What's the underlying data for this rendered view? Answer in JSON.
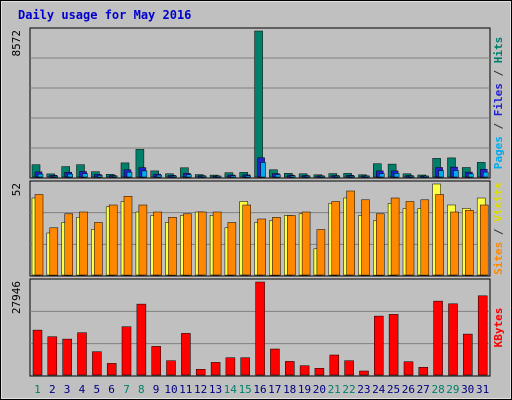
{
  "chart_data": {
    "type": "bar",
    "title": "Daily usage for May 2016",
    "x": [
      1,
      2,
      3,
      4,
      5,
      6,
      7,
      8,
      9,
      10,
      11,
      12,
      13,
      14,
      15,
      16,
      17,
      18,
      19,
      20,
      21,
      22,
      23,
      24,
      25,
      26,
      27,
      28,
      29,
      30,
      31
    ],
    "weekend_days": [
      1,
      7,
      8,
      14,
      15,
      21,
      22,
      28,
      29
    ],
    "panels": [
      {
        "id": "top",
        "ymax": 8572,
        "ymax_label": "8572",
        "side_labels": [
          {
            "text": "Pages",
            "color": "#00aaee"
          },
          {
            "text": " / ",
            "color": "#333333"
          },
          {
            "text": "Files",
            "color": "#2222cc"
          },
          {
            "text": " / ",
            "color": "#333333"
          },
          {
            "text": "Hits",
            "color": "#00806a"
          }
        ],
        "series": [
          {
            "name": "Hits",
            "color": "#00806a",
            "values": [
              720,
              180,
              610,
              720,
              310,
              160,
              830,
              1620,
              360,
              190,
              540,
              140,
              110,
              250,
              270,
              8572,
              420,
              220,
              190,
              130,
              200,
              210,
              130,
              780,
              760,
              190,
              120,
              1090,
              1120,
              560,
              860
            ]
          },
          {
            "name": "Files",
            "color": "#2222cc",
            "values": [
              300,
              100,
              280,
              320,
              150,
              90,
              420,
              550,
              170,
              100,
              210,
              80,
              60,
              120,
              130,
              1130,
              200,
              110,
              90,
              70,
              90,
              100,
              70,
              360,
              360,
              90,
              60,
              560,
              580,
              290,
              450
            ]
          },
          {
            "name": "Pages",
            "color": "#00aaee",
            "values": [
              170,
              60,
              170,
              200,
              90,
              55,
              280,
              360,
              110,
              60,
              130,
              50,
              40,
              80,
              80,
              850,
              130,
              70,
              60,
              40,
              55,
              60,
              40,
              200,
              210,
              55,
              40,
              370,
              380,
              180,
              290
            ]
          }
        ]
      },
      {
        "id": "mid",
        "ymax": 52,
        "ymax_label": "52",
        "side_labels": [
          {
            "text": "Sites",
            "color": "#ff8800"
          },
          {
            "text": " / ",
            "color": "#333333"
          },
          {
            "text": "Visits",
            "color": "#dddd00"
          }
        ],
        "series": [
          {
            "name": "Visits",
            "color": "#ffff44",
            "values": [
              44,
              24,
              30,
              33,
              26,
              39,
              42,
              36,
              34,
              30,
              34,
              36,
              34,
              27,
              42,
              30,
              31,
              34,
              35,
              15,
              41,
              44,
              34,
              31,
              41,
              38,
              38,
              52,
              40,
              38,
              44
            ]
          },
          {
            "name": "Sites",
            "color": "#ff8800",
            "values": [
              46,
              27,
              35,
              36,
              30,
              40,
              45,
              40,
              36,
              33,
              35,
              36,
              36,
              30,
              40,
              32,
              33,
              34,
              36,
              26,
              42,
              48,
              43,
              35,
              44,
              42,
              43,
              46,
              36,
              37,
              40
            ]
          }
        ]
      },
      {
        "id": "bot",
        "ymax": 27946,
        "ymax_label": "27946",
        "side_labels": [
          {
            "text": "KBytes",
            "color": "#ff0000"
          }
        ],
        "series": [
          {
            "name": "KBytes",
            "color": "#ff0000",
            "values": [
              13500,
              11500,
              10800,
              12700,
              7000,
              3500,
              14500,
              21300,
              8600,
              4300,
              12500,
              1700,
              3800,
              5200,
              5200,
              27946,
              7800,
              4100,
              2800,
              2000,
              6000,
              4300,
              1200,
              17700,
              18200,
              4000,
              2300,
              22200,
              21400,
              12300,
              23800
            ]
          }
        ]
      }
    ]
  }
}
